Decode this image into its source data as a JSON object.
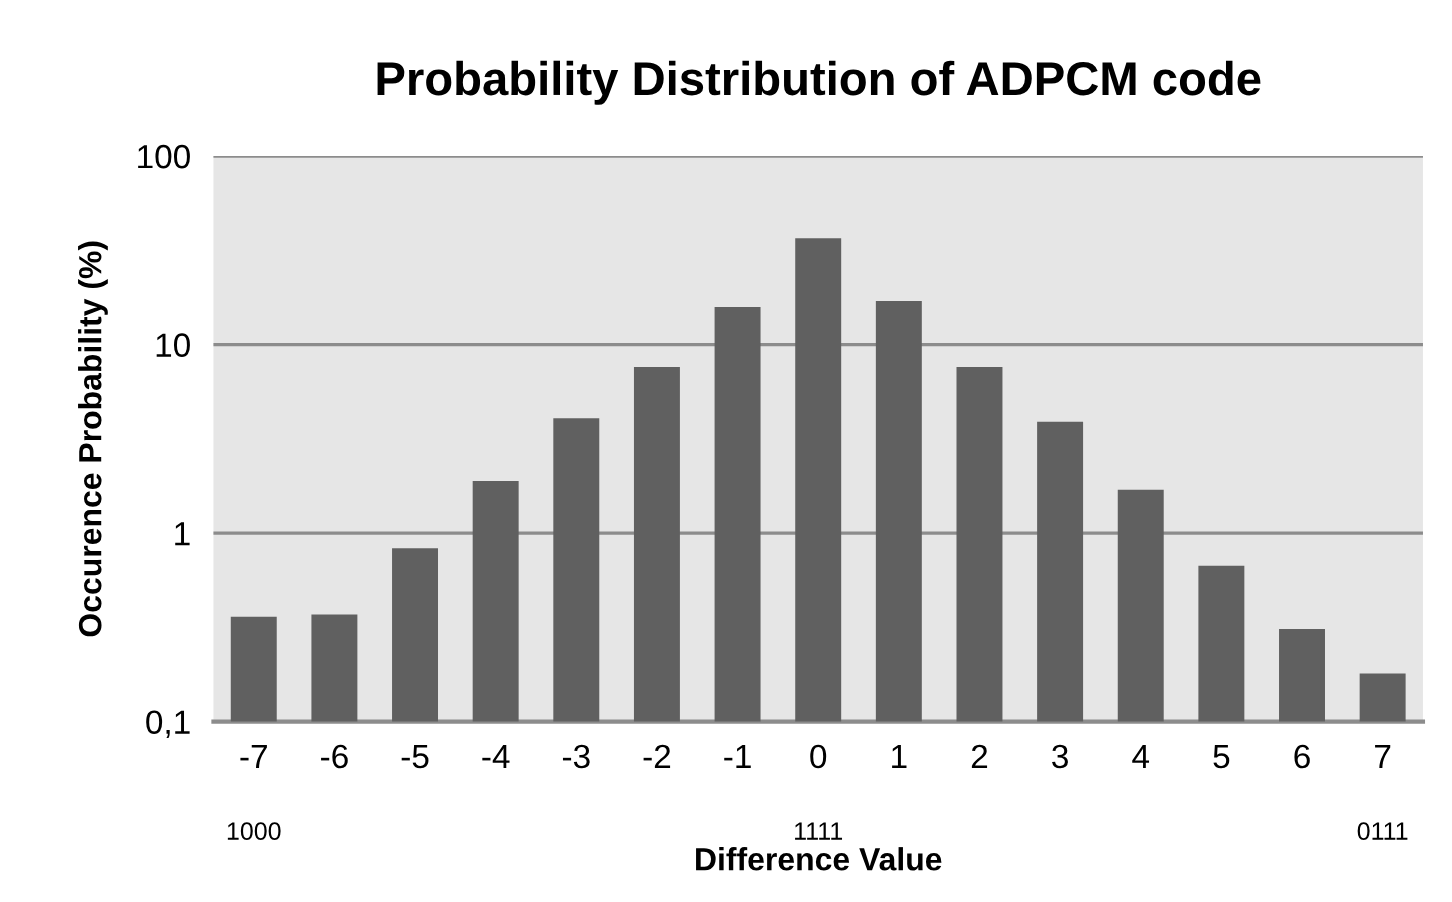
{
  "chart_data": {
    "type": "bar",
    "title": "Probability Distribution of ADPCM code",
    "xlabel": "Difference Value",
    "ylabel": "Occurence Probability (%)",
    "categories": [
      "-7",
      "-6",
      "-5",
      "-4",
      "-3",
      "-2",
      "-1",
      "0",
      "1",
      "2",
      "3",
      "4",
      "5",
      "6",
      "7"
    ],
    "values": [
      0.36,
      0.37,
      0.83,
      1.89,
      4.07,
      7.6,
      15.8,
      36.6,
      17.0,
      7.6,
      3.9,
      1.7,
      0.67,
      0.31,
      0.18
    ],
    "color": "#606060",
    "log": "y",
    "ylim": [
      0.1,
      100
    ],
    "yticks": [
      {
        "value": 0.1,
        "label": "0,1"
      },
      1,
      10,
      100
    ],
    "grid": "y",
    "annotations": [
      "1000",
      "1111",
      "0111"
    ]
  }
}
